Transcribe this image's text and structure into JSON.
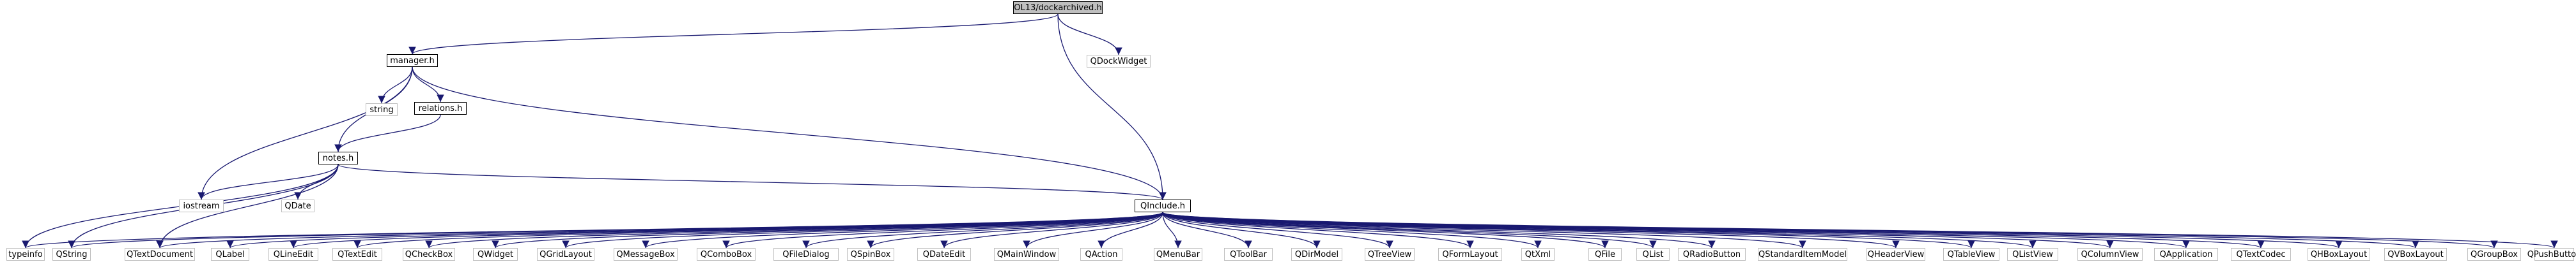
{
  "graph": {
    "root": {
      "id": "n0",
      "label": "OL13/dockarchived.h"
    },
    "nodes": [
      {
        "id": "n0",
        "label": "OL13/dockarchived.h",
        "kind": "root"
      },
      {
        "id": "n1",
        "label": "QDockWidget",
        "kind": "ext"
      },
      {
        "id": "n2",
        "label": "manager.h",
        "kind": "local"
      },
      {
        "id": "n3",
        "label": "string",
        "kind": "ext"
      },
      {
        "id": "n4",
        "label": "relations.h",
        "kind": "local"
      },
      {
        "id": "n5",
        "label": "notes.h",
        "kind": "local"
      },
      {
        "id": "n6",
        "label": "iostream",
        "kind": "ext"
      },
      {
        "id": "n7",
        "label": "QDate",
        "kind": "ext"
      },
      {
        "id": "n8",
        "label": "QInclude.h",
        "kind": "local"
      },
      {
        "id": "n9",
        "label": "typeinfo",
        "kind": "ext"
      },
      {
        "id": "n10",
        "label": "QString",
        "kind": "ext"
      },
      {
        "id": "n11",
        "label": "QTextDocument",
        "kind": "ext"
      },
      {
        "id": "n12",
        "label": "QLabel",
        "kind": "ext"
      },
      {
        "id": "n13",
        "label": "QLineEdit",
        "kind": "ext"
      },
      {
        "id": "n14",
        "label": "QTextEdit",
        "kind": "ext"
      },
      {
        "id": "n15",
        "label": "QCheckBox",
        "kind": "ext"
      },
      {
        "id": "n16",
        "label": "QWidget",
        "kind": "ext"
      },
      {
        "id": "n17",
        "label": "QGridLayout",
        "kind": "ext"
      },
      {
        "id": "n18",
        "label": "QMessageBox",
        "kind": "ext"
      },
      {
        "id": "n19",
        "label": "QComboBox",
        "kind": "ext"
      },
      {
        "id": "n20",
        "label": "QFileDialog",
        "kind": "ext"
      },
      {
        "id": "n21",
        "label": "QSpinBox",
        "kind": "ext"
      },
      {
        "id": "n22",
        "label": "QDateEdit",
        "kind": "ext"
      },
      {
        "id": "n23",
        "label": "QMainWindow",
        "kind": "ext"
      },
      {
        "id": "n24",
        "label": "QAction",
        "kind": "ext"
      },
      {
        "id": "n25",
        "label": "QMenuBar",
        "kind": "ext"
      },
      {
        "id": "n26",
        "label": "QToolBar",
        "kind": "ext"
      },
      {
        "id": "n27",
        "label": "QDirModel",
        "kind": "ext"
      },
      {
        "id": "n28",
        "label": "QTreeView",
        "kind": "ext"
      },
      {
        "id": "n29",
        "label": "QFormLayout",
        "kind": "ext"
      },
      {
        "id": "n30",
        "label": "QtXml",
        "kind": "ext"
      },
      {
        "id": "n31",
        "label": "QFile",
        "kind": "ext"
      },
      {
        "id": "n32",
        "label": "QList",
        "kind": "ext"
      },
      {
        "id": "n33",
        "label": "QRadioButton",
        "kind": "ext"
      },
      {
        "id": "n34",
        "label": "QStandardItemModel",
        "kind": "ext"
      },
      {
        "id": "n35",
        "label": "QHeaderView",
        "kind": "ext"
      },
      {
        "id": "n36",
        "label": "QTableView",
        "kind": "ext"
      },
      {
        "id": "n37",
        "label": "QListView",
        "kind": "ext"
      },
      {
        "id": "n38",
        "label": "QColumnView",
        "kind": "ext"
      },
      {
        "id": "n39",
        "label": "QApplication",
        "kind": "ext"
      },
      {
        "id": "n40",
        "label": "QTextCodec",
        "kind": "ext"
      },
      {
        "id": "n41",
        "label": "QHBoxLayout",
        "kind": "ext"
      },
      {
        "id": "n42",
        "label": "QVBoxLayout",
        "kind": "ext"
      },
      {
        "id": "n43",
        "label": "QGroupBox",
        "kind": "ext"
      },
      {
        "id": "n44",
        "label": "QPushButton",
        "kind": "ext"
      }
    ],
    "edges": [
      [
        "n0",
        "n1"
      ],
      [
        "n0",
        "n2"
      ],
      [
        "n0",
        "n8"
      ],
      [
        "n2",
        "n3"
      ],
      [
        "n2",
        "n4"
      ],
      [
        "n2",
        "n5"
      ],
      [
        "n2",
        "n6"
      ],
      [
        "n2",
        "n8"
      ],
      [
        "n4",
        "n5"
      ],
      [
        "n5",
        "n6"
      ],
      [
        "n5",
        "n7"
      ],
      [
        "n5",
        "n8"
      ],
      [
        "n5",
        "n9"
      ],
      [
        "n5",
        "n10"
      ],
      [
        "n5",
        "n11"
      ],
      [
        "n8",
        "n9"
      ],
      [
        "n8",
        "n10"
      ],
      [
        "n8",
        "n11"
      ],
      [
        "n8",
        "n12"
      ],
      [
        "n8",
        "n13"
      ],
      [
        "n8",
        "n14"
      ],
      [
        "n8",
        "n15"
      ],
      [
        "n8",
        "n16"
      ],
      [
        "n8",
        "n17"
      ],
      [
        "n8",
        "n18"
      ],
      [
        "n8",
        "n19"
      ],
      [
        "n8",
        "n20"
      ],
      [
        "n8",
        "n21"
      ],
      [
        "n8",
        "n22"
      ],
      [
        "n8",
        "n23"
      ],
      [
        "n8",
        "n24"
      ],
      [
        "n8",
        "n25"
      ],
      [
        "n8",
        "n26"
      ],
      [
        "n8",
        "n27"
      ],
      [
        "n8",
        "n28"
      ],
      [
        "n8",
        "n29"
      ],
      [
        "n8",
        "n30"
      ],
      [
        "n8",
        "n31"
      ],
      [
        "n8",
        "n32"
      ],
      [
        "n8",
        "n33"
      ],
      [
        "n8",
        "n34"
      ],
      [
        "n8",
        "n35"
      ],
      [
        "n8",
        "n36"
      ],
      [
        "n8",
        "n37"
      ],
      [
        "n8",
        "n38"
      ],
      [
        "n8",
        "n39"
      ],
      [
        "n8",
        "n40"
      ],
      [
        "n8",
        "n41"
      ],
      [
        "n8",
        "n42"
      ],
      [
        "n8",
        "n43"
      ],
      [
        "n8",
        "n44"
      ]
    ],
    "edge_color": "#191970"
  }
}
